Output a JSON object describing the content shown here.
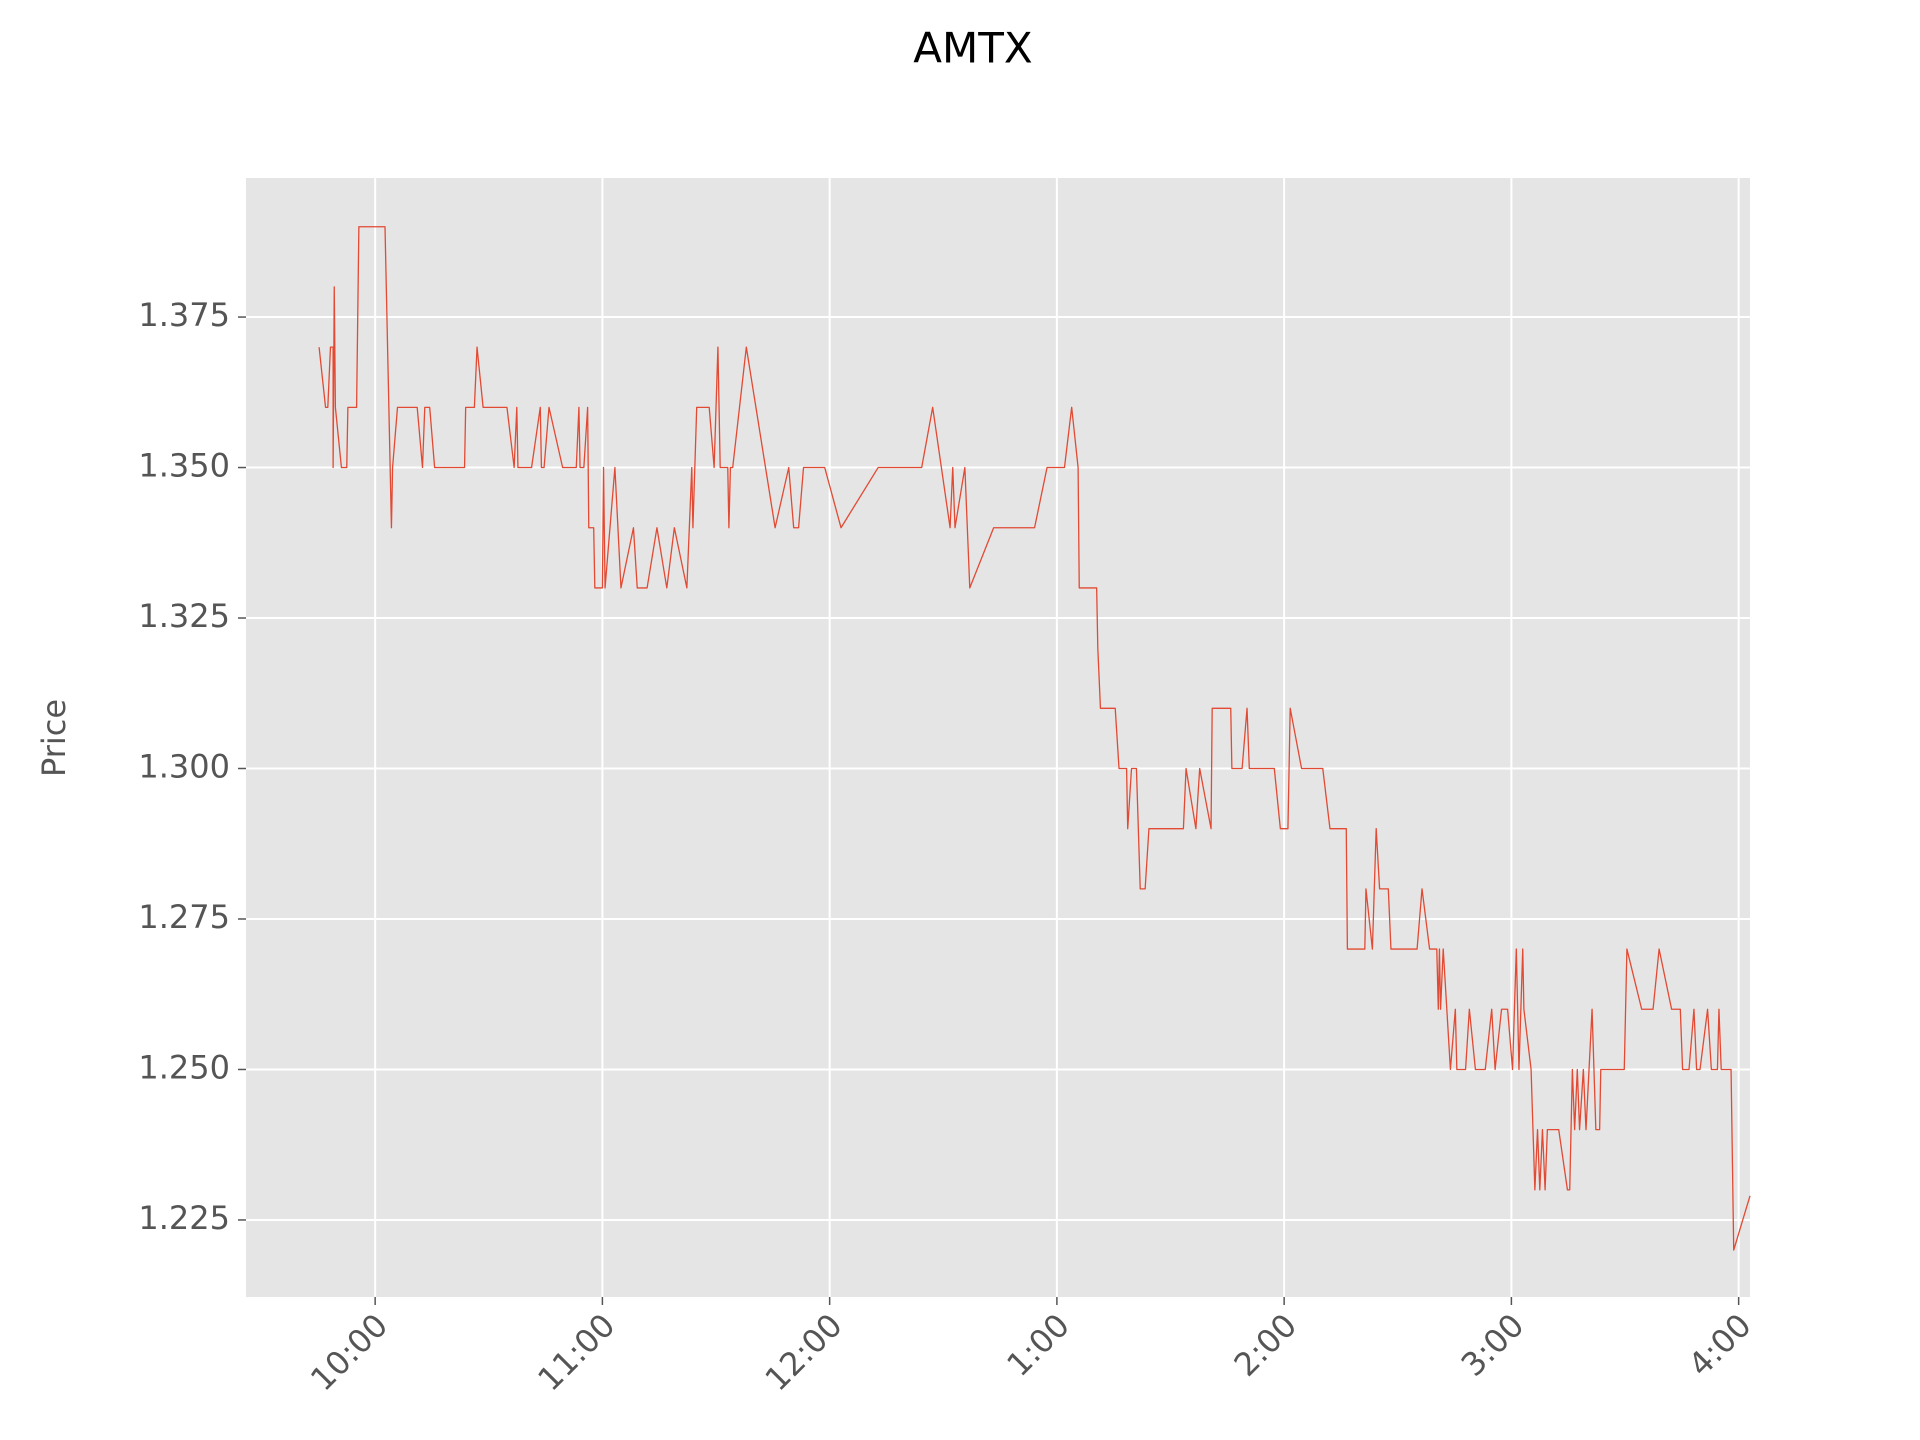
{
  "chart_data": {
    "type": "line",
    "title": "AMTX",
    "y_label": "Price",
    "color": "#E24A33",
    "grid": true,
    "xlim": [
      565.9,
      963.0
    ],
    "xticks": [
      {
        "value": 600,
        "label": "10:00"
      },
      {
        "value": 660,
        "label": "11:00"
      },
      {
        "value": 720,
        "label": "12:00"
      },
      {
        "value": 780,
        "label": "1:00"
      },
      {
        "value": 840,
        "label": "2:00"
      },
      {
        "value": 900,
        "label": "3:00"
      },
      {
        "value": 960,
        "label": "4:00"
      }
    ],
    "ylim": [
      1.2122,
      1.3981
    ],
    "yticks": [
      1.225,
      {
        "value": 1.25,
        "label": "1.250"
      },
      1.275,
      {
        "value": 1.3,
        "label": "1.300"
      },
      1.325,
      {
        "value": 1.35,
        "label": "1.350"
      },
      1.375
    ],
    "x": [
      585.2,
      586.9,
      587.5,
      588.2,
      588.9,
      588.9,
      589.2,
      589.5,
      591.1,
      592.5,
      592.8,
      595.1,
      595.7,
      602.6,
      604.3,
      604.6,
      605.9,
      611.1,
      612.5,
      613.1,
      614.4,
      615.7,
      623.6,
      623.9,
      626.2,
      626.9,
      628.5,
      634.8,
      636.7,
      637.4,
      637.7,
      641.3,
      643.6,
      643.9,
      644.6,
      645.9,
      649.5,
      653.1,
      653.8,
      654.1,
      655.1,
      656.1,
      656.4,
      657.7,
      658.0,
      660.0,
      660.3,
      660.7,
      663.3,
      664.9,
      668.2,
      669.2,
      671.8,
      674.4,
      677.0,
      679.0,
      682.3,
      683.6,
      683.9,
      684.9,
      688.2,
      689.5,
      690.5,
      691.1,
      693.1,
      693.4,
      693.8,
      694.4,
      698.0,
      705.6,
      709.2,
      710.5,
      711.8,
      713.1,
      718.7,
      723.0,
      732.8,
      744.3,
      747.2,
      751.8,
      752.5,
      753.1,
      755.7,
      757.0,
      763.3,
      774.1,
      777.4,
      782.0,
      783.9,
      785.6,
      785.9,
      790.5,
      790.8,
      791.5,
      795.4,
      796.4,
      798.4,
      798.7,
      799.7,
      801.0,
      802.0,
      803.3,
      804.3,
      813.4,
      814.1,
      816.7,
      817.7,
      820.7,
      821.0,
      825.9,
      826.2,
      828.9,
      830.2,
      830.8,
      837.4,
      839.0,
      841.0,
      841.6,
      844.6,
      850.2,
      852.1,
      856.4,
      856.7,
      861.3,
      861.6,
      863.3,
      864.3,
      865.2,
      867.5,
      868.2,
      875.1,
      876.4,
      878.4,
      880.3,
      880.7,
      881.0,
      881.3,
      882.0,
      883.9,
      885.2,
      885.6,
      887.9,
      888.9,
      890.5,
      893.1,
      894.8,
      895.7,
      897.4,
      899.0,
      900.3,
      901.3,
      902.0,
      903.0,
      903.3,
      905.2,
      906.2,
      906.9,
      907.5,
      908.2,
      908.9,
      909.5,
      912.5,
      914.8,
      915.4,
      916.1,
      916.7,
      917.4,
      918.0,
      919.0,
      919.7,
      921.3,
      922.3,
      923.3,
      923.6,
      929.8,
      930.5,
      934.4,
      937.4,
      939.0,
      942.3,
      944.6,
      945.2,
      946.9,
      948.2,
      948.9,
      949.8,
      951.8,
      952.8,
      954.4,
      954.8,
      955.4,
      958.0,
      958.7,
      963.0
    ],
    "values": [
      1.37,
      1.36,
      1.36,
      1.37,
      1.37,
      1.35,
      1.38,
      1.36,
      1.35,
      1.35,
      1.36,
      1.36,
      1.39,
      1.39,
      1.34,
      1.35,
      1.36,
      1.36,
      1.35,
      1.36,
      1.36,
      1.35,
      1.35,
      1.36,
      1.36,
      1.37,
      1.36,
      1.36,
      1.35,
      1.36,
      1.35,
      1.35,
      1.36,
      1.35,
      1.35,
      1.36,
      1.35,
      1.35,
      1.36,
      1.35,
      1.35,
      1.36,
      1.34,
      1.34,
      1.33,
      1.33,
      1.35,
      1.33,
      1.35,
      1.33,
      1.34,
      1.33,
      1.33,
      1.34,
      1.33,
      1.34,
      1.33,
      1.35,
      1.34,
      1.36,
      1.36,
      1.35,
      1.37,
      1.35,
      1.35,
      1.34,
      1.35,
      1.35,
      1.37,
      1.34,
      1.35,
      1.34,
      1.34,
      1.35,
      1.35,
      1.34,
      1.35,
      1.35,
      1.36,
      1.34,
      1.35,
      1.34,
      1.35,
      1.33,
      1.34,
      1.34,
      1.35,
      1.35,
      1.36,
      1.35,
      1.33,
      1.33,
      1.32,
      1.31,
      1.31,
      1.3,
      1.3,
      1.29,
      1.3,
      1.3,
      1.28,
      1.28,
      1.29,
      1.29,
      1.3,
      1.29,
      1.3,
      1.29,
      1.31,
      1.31,
      1.3,
      1.3,
      1.31,
      1.3,
      1.3,
      1.29,
      1.29,
      1.31,
      1.3,
      1.3,
      1.29,
      1.29,
      1.27,
      1.27,
      1.28,
      1.27,
      1.29,
      1.28,
      1.28,
      1.27,
      1.27,
      1.28,
      1.27,
      1.27,
      1.26,
      1.27,
      1.26,
      1.27,
      1.25,
      1.26,
      1.25,
      1.25,
      1.26,
      1.25,
      1.25,
      1.26,
      1.25,
      1.26,
      1.26,
      1.25,
      1.27,
      1.25,
      1.27,
      1.26,
      1.25,
      1.23,
      1.24,
      1.23,
      1.24,
      1.23,
      1.24,
      1.24,
      1.23,
      1.23,
      1.25,
      1.24,
      1.25,
      1.24,
      1.25,
      1.24,
      1.26,
      1.24,
      1.24,
      1.25,
      1.25,
      1.27,
      1.26,
      1.26,
      1.27,
      1.26,
      1.26,
      1.25,
      1.25,
      1.26,
      1.25,
      1.25,
      1.26,
      1.25,
      1.25,
      1.26,
      1.25,
      1.25,
      1.22,
      1.229
    ]
  }
}
